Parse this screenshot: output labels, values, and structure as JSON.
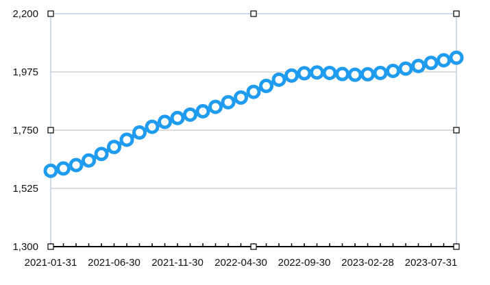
{
  "chart_data": {
    "type": "line",
    "title": "",
    "xlabel": "",
    "ylabel": "",
    "ylim": [
      1300,
      2200
    ],
    "yticks": [
      "2,200",
      "1,975",
      "1,750",
      "1,525",
      "1,300"
    ],
    "ytick_values": [
      2200,
      1975,
      1750,
      1525,
      1300
    ],
    "xtick_labels": [
      "2021-01-31",
      "2021-06-30",
      "2021-11-30",
      "2022-04-30",
      "2022-09-30",
      "2023-02-28",
      "2023-07-31"
    ],
    "x": [
      "2021-01-31",
      "2021-02-28",
      "2021-03-31",
      "2021-04-30",
      "2021-05-31",
      "2021-06-30",
      "2021-07-31",
      "2021-08-31",
      "2021-09-30",
      "2021-10-31",
      "2021-11-30",
      "2021-12-31",
      "2022-01-31",
      "2022-02-28",
      "2022-03-31",
      "2022-04-30",
      "2022-05-31",
      "2022-06-30",
      "2022-07-31",
      "2022-08-31",
      "2022-09-30",
      "2022-10-31",
      "2022-11-30",
      "2022-12-31",
      "2023-01-31",
      "2023-02-28",
      "2023-03-31",
      "2023-04-30",
      "2023-05-31",
      "2023-06-30",
      "2023-07-31",
      "2023-08-31",
      "2023-09-30"
    ],
    "series": [
      {
        "values": [
          1593,
          1602,
          1615,
          1633,
          1658,
          1685,
          1713,
          1741,
          1763,
          1782,
          1797,
          1810,
          1823,
          1840,
          1858,
          1876,
          1898,
          1921,
          1945,
          1961,
          1970,
          1973,
          1971,
          1967,
          1964,
          1966,
          1971,
          1979,
          1988,
          1998,
          2010,
          2020,
          2030
        ]
      }
    ],
    "grid": true,
    "legend": "none",
    "colors": {
      "series": "#1f9cf0",
      "grid": "#b9b9b9",
      "frame": "#a9c6ea",
      "axis": "#000000"
    }
  }
}
